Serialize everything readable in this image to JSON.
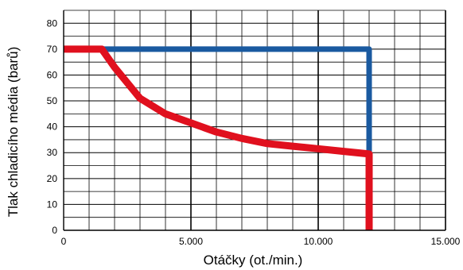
{
  "chart_data": {
    "type": "line",
    "xlabel": "Otáčky (ot./min.)",
    "ylabel": "Tlak chladicího média (barů)",
    "xlim": [
      0,
      15000
    ],
    "ylim": [
      0,
      85
    ],
    "x_ticks": [
      0,
      5000,
      10000,
      15000
    ],
    "x_tick_labels": [
      "0",
      "5.000",
      "10.000",
      "15.000"
    ],
    "y_ticks": [
      0,
      10,
      20,
      30,
      40,
      50,
      60,
      70,
      80
    ],
    "y_tick_labels": [
      "0",
      "10",
      "20",
      "30",
      "40",
      "50",
      "60",
      "70",
      "80"
    ],
    "minor_x_step": 1000,
    "minor_y_step": 5,
    "grid": true,
    "series": [
      {
        "color": "#1a5aa0",
        "points": [
          [
            0,
            70
          ],
          [
            12000,
            70
          ],
          [
            12000,
            30
          ]
        ]
      },
      {
        "color": "#e0101e",
        "points": [
          [
            0,
            70
          ],
          [
            1500,
            70
          ],
          [
            2000,
            63
          ],
          [
            3000,
            51
          ],
          [
            4000,
            45
          ],
          [
            5000,
            41.5
          ],
          [
            6000,
            38
          ],
          [
            7000,
            35.5
          ],
          [
            8000,
            33.5
          ],
          [
            9000,
            32.5
          ],
          [
            10000,
            31.5
          ],
          [
            11000,
            30.5
          ],
          [
            12000,
            29.5
          ],
          [
            12000,
            0
          ]
        ]
      }
    ]
  }
}
